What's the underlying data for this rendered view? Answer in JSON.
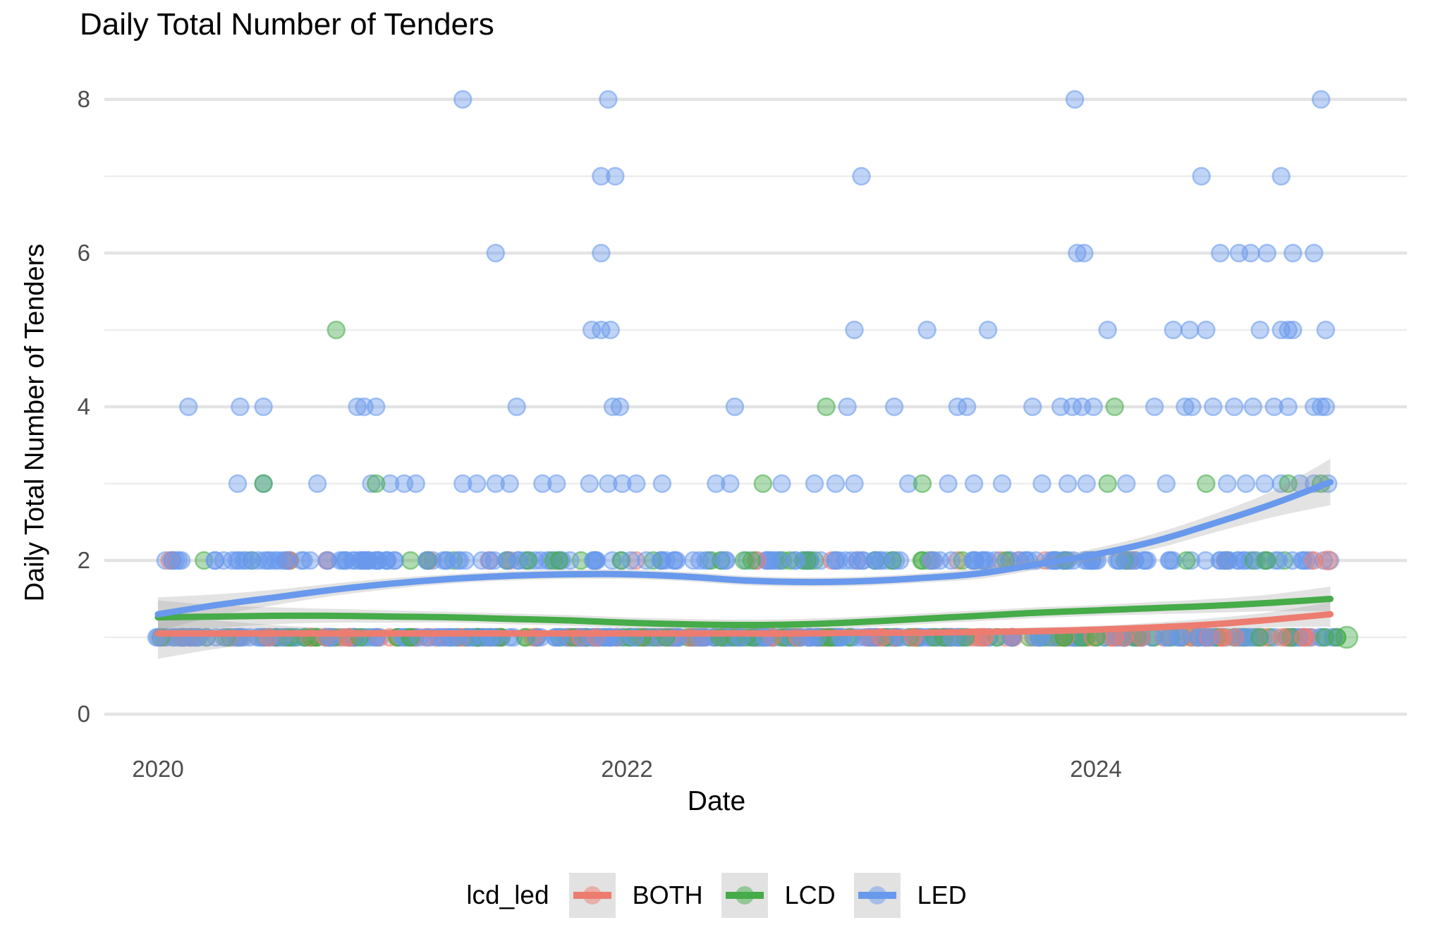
{
  "title": "Daily Total Number of Tenders",
  "axes": {
    "y_label": "Daily Total Number of Tenders",
    "x_label": "Date",
    "y_ticks": [
      {
        "label": "0",
        "value": 0
      },
      {
        "label": "2",
        "value": 2
      },
      {
        "label": "4",
        "value": 4
      },
      {
        "label": "6",
        "value": 6
      },
      {
        "label": "8",
        "value": 8
      }
    ],
    "y_minor": [
      1,
      3,
      5,
      7
    ],
    "x_ticks": [
      {
        "label": "2020",
        "value": 2020
      },
      {
        "label": "2022",
        "value": 2022
      },
      {
        "label": "2024",
        "value": 2024
      }
    ]
  },
  "legend": {
    "title": "lcd_led",
    "items": [
      {
        "label": "BOTH",
        "color_key": "BOTH"
      },
      {
        "label": "LCD",
        "color_key": "LCD"
      },
      {
        "label": "LED",
        "color_key": "LED"
      }
    ]
  },
  "colors": {
    "BOTH": "#ED7C70",
    "LCD": "#46AB49",
    "LED": "#6899EC",
    "ribbon": "#9C9C9C",
    "grid_major": "#E4E4E4",
    "grid_minor": "#EDEDED",
    "tick_label": "#4D4D4D",
    "legend_key_bg": "#E2E2E2"
  },
  "chart_data": {
    "type": "scatter",
    "title": "Daily Total Number of Tenders",
    "xlabel": "Date",
    "ylabel": "Daily Total Number of Tenders",
    "x_domain": [
      2019.77,
      2025.33
    ],
    "y_domain": [
      -0.15,
      8.45
    ],
    "grid": "horizontal-only",
    "legend_position": "bottom",
    "point_rows": [
      {
        "y": 8,
        "color": "LED",
        "dates": [
          2021.3,
          2021.92,
          2023.91,
          2024.96
        ]
      },
      {
        "y": 7,
        "color": "LED",
        "dates": [
          2021.89,
          2021.95,
          2023.0,
          2024.45,
          2024.79
        ]
      },
      {
        "y": 6,
        "color": "LED",
        "dates": [
          2021.44,
          2021.89,
          2023.92,
          2023.95,
          2024.53,
          2024.61,
          2024.66,
          2024.73,
          2024.84,
          2024.93
        ]
      },
      {
        "y": 5,
        "color": "LED",
        "dates": [
          2021.85,
          2021.89,
          2021.93,
          2022.97,
          2023.28,
          2023.54,
          2024.05,
          2024.33,
          2024.4,
          2024.47,
          2024.7,
          2024.79,
          2024.82,
          2024.84,
          2024.98
        ]
      },
      {
        "y": 5,
        "color": "LCD",
        "dates": [
          2020.76
        ]
      },
      {
        "y": 4,
        "color": "LED",
        "dates": [
          2020.13,
          2020.35,
          2020.45,
          2020.85,
          2020.88,
          2020.93,
          2021.53,
          2021.94,
          2021.97,
          2022.46,
          2022.94,
          2023.14,
          2023.41,
          2023.45,
          2023.73,
          2023.85,
          2023.9,
          2023.94,
          2023.99,
          2024.25,
          2024.38,
          2024.41,
          2024.5,
          2024.59,
          2024.67,
          2024.76,
          2024.82,
          2024.93,
          2024.96,
          2024.98
        ]
      },
      {
        "y": 4,
        "color": "LCD",
        "dates": [
          2022.85,
          2024.08
        ]
      },
      {
        "y": 3,
        "color": "LED",
        "dates": [
          2020.34,
          2020.45,
          2020.68,
          2020.91,
          2020.99,
          2021.05,
          2021.1,
          2021.3,
          2021.36,
          2021.44,
          2021.5,
          2021.64,
          2021.7,
          2021.84,
          2021.92,
          2021.98,
          2022.04,
          2022.15,
          2022.38,
          2022.44,
          2022.66,
          2022.8,
          2022.89,
          2022.97,
          2023.2,
          2023.37,
          2023.48,
          2023.6,
          2023.77,
          2023.88,
          2023.96,
          2024.13,
          2024.3,
          2024.56,
          2024.64,
          2024.72,
          2024.79,
          2024.87,
          2024.93,
          2024.99
        ]
      },
      {
        "y": 3,
        "color": "LCD",
        "dates": [
          2020.45,
          2020.93,
          2022.58,
          2023.26,
          2024.05,
          2024.47,
          2024.82,
          2024.96
        ]
      }
    ],
    "point_bands": [
      {
        "y": 2,
        "from": 2020.03,
        "to": 2025.0,
        "count": 265,
        "seed": 7,
        "weights": {
          "LED": 0.8,
          "LCD": 0.16,
          "BOTH": 0.04
        }
      },
      {
        "y": 1,
        "from": 2019.97,
        "to": 2025.05,
        "count": 560,
        "seed": 13,
        "weights": {
          "LED": 0.55,
          "LCD": 0.25,
          "BOTH": 0.2
        }
      }
    ],
    "special_points": [
      {
        "date": 2025.07,
        "y": 1,
        "color": "LCD",
        "r": 15
      },
      {
        "date": 2024.99,
        "y": 2,
        "color": "BOTH",
        "r": 13
      }
    ],
    "smooth": {
      "dates": [
        2020.0,
        2020.25,
        2020.5,
        2020.75,
        2021.0,
        2021.25,
        2021.5,
        2021.75,
        2022.0,
        2022.25,
        2022.5,
        2022.75,
        2023.0,
        2023.25,
        2023.5,
        2023.75,
        2024.0,
        2024.25,
        2024.5,
        2024.75,
        2025.0
      ],
      "series": [
        {
          "name": "BOTH",
          "line": [
            1.05,
            1.05,
            1.05,
            1.05,
            1.05,
            1.05,
            1.05,
            1.05,
            1.05,
            1.05,
            1.05,
            1.05,
            1.06,
            1.06,
            1.07,
            1.08,
            1.1,
            1.13,
            1.17,
            1.23,
            1.3
          ],
          "upper": [
            1.3,
            1.22,
            1.16,
            1.12,
            1.1,
            1.09,
            1.09,
            1.09,
            1.09,
            1.09,
            1.09,
            1.09,
            1.1,
            1.1,
            1.11,
            1.13,
            1.15,
            1.19,
            1.25,
            1.33,
            1.46
          ],
          "lower": [
            0.72,
            0.85,
            0.93,
            0.97,
            1.0,
            1.01,
            1.01,
            1.01,
            1.01,
            1.01,
            1.01,
            1.01,
            1.02,
            1.02,
            1.03,
            1.03,
            1.05,
            1.07,
            1.09,
            1.13,
            1.14
          ]
        },
        {
          "name": "LCD",
          "line": [
            1.26,
            1.27,
            1.28,
            1.28,
            1.27,
            1.26,
            1.24,
            1.22,
            1.19,
            1.17,
            1.16,
            1.17,
            1.2,
            1.24,
            1.28,
            1.32,
            1.35,
            1.38,
            1.41,
            1.45,
            1.5
          ],
          "upper": [
            1.48,
            1.42,
            1.39,
            1.37,
            1.35,
            1.33,
            1.31,
            1.29,
            1.26,
            1.24,
            1.23,
            1.24,
            1.27,
            1.31,
            1.35,
            1.39,
            1.42,
            1.46,
            1.5,
            1.56,
            1.66
          ],
          "lower": [
            1.04,
            1.12,
            1.17,
            1.19,
            1.19,
            1.19,
            1.17,
            1.15,
            1.12,
            1.1,
            1.09,
            1.1,
            1.13,
            1.17,
            1.21,
            1.25,
            1.28,
            1.3,
            1.32,
            1.34,
            1.34
          ]
        },
        {
          "name": "LED",
          "line": [
            1.3,
            1.42,
            1.52,
            1.62,
            1.7,
            1.76,
            1.8,
            1.82,
            1.82,
            1.79,
            1.74,
            1.72,
            1.73,
            1.77,
            1.83,
            1.95,
            2.08,
            2.25,
            2.48,
            2.73,
            3.02
          ],
          "upper": [
            1.52,
            1.56,
            1.62,
            1.7,
            1.77,
            1.82,
            1.86,
            1.88,
            1.88,
            1.85,
            1.8,
            1.78,
            1.79,
            1.83,
            1.9,
            2.02,
            2.16,
            2.35,
            2.6,
            2.9,
            3.32
          ],
          "lower": [
            1.08,
            1.28,
            1.42,
            1.54,
            1.63,
            1.7,
            1.74,
            1.76,
            1.76,
            1.73,
            1.68,
            1.66,
            1.67,
            1.71,
            1.76,
            1.88,
            2.0,
            2.15,
            2.36,
            2.56,
            2.72
          ]
        }
      ]
    }
  }
}
